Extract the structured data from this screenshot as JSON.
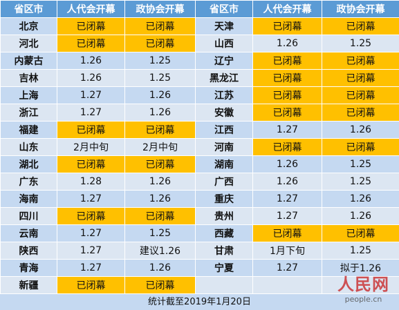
{
  "table": {
    "header": [
      "省区市",
      "人代会开幕",
      "政协会开幕",
      "省区市",
      "人代会开幕",
      "政协会开幕"
    ],
    "rows": [
      [
        "北京",
        "已闭幕",
        "已闭幕",
        "天津",
        "已闭幕",
        "已闭幕"
      ],
      [
        "河北",
        "已闭幕",
        "已闭幕",
        "山西",
        "1.26",
        "1.25"
      ],
      [
        "内蒙古",
        "1.26",
        "1.25",
        "辽宁",
        "已闭幕",
        "已闭幕"
      ],
      [
        "吉林",
        "1.26",
        "1.25",
        "黑龙江",
        "已闭幕",
        "已闭幕"
      ],
      [
        "上海",
        "1.27",
        "1.26",
        "江苏",
        "已闭幕",
        "已闭幕"
      ],
      [
        "浙江",
        "1.27",
        "1.26",
        "安徽",
        "已闭幕",
        "已闭幕"
      ],
      [
        "福建",
        "已闭幕",
        "已闭幕",
        "江西",
        "1.27",
        "1.26"
      ],
      [
        "山东",
        "2月中旬",
        "2月中旬",
        "河南",
        "已闭幕",
        "已闭幕"
      ],
      [
        "湖北",
        "已闭幕",
        "已闭幕",
        "湖南",
        "1.26",
        "1.25"
      ],
      [
        "广东",
        "1.28",
        "1.26",
        "广西",
        "1.26",
        "1.25"
      ],
      [
        "海南",
        "1.27",
        "1.26",
        "重庆",
        "1.27",
        "1.26"
      ],
      [
        "四川",
        "已闭幕",
        "已闭幕",
        "贵州",
        "1.27",
        "1.26"
      ],
      [
        "云南",
        "1.27",
        "1.25",
        "西藏",
        "已闭幕",
        "已闭幕"
      ],
      [
        "陕西",
        "1.27",
        "建议1.26",
        "甘肃",
        "1月下旬",
        "1.25"
      ],
      [
        "青海",
        "1.27",
        "1.26",
        "宁夏",
        "1.27",
        "拟于1.26"
      ],
      [
        "新疆",
        "已闭幕",
        "已闭幕"
      ]
    ],
    "footer": "统计截至2019年1月20日"
  },
  "watermark": {
    "logo": "人民网",
    "url": "people.cn"
  }
}
